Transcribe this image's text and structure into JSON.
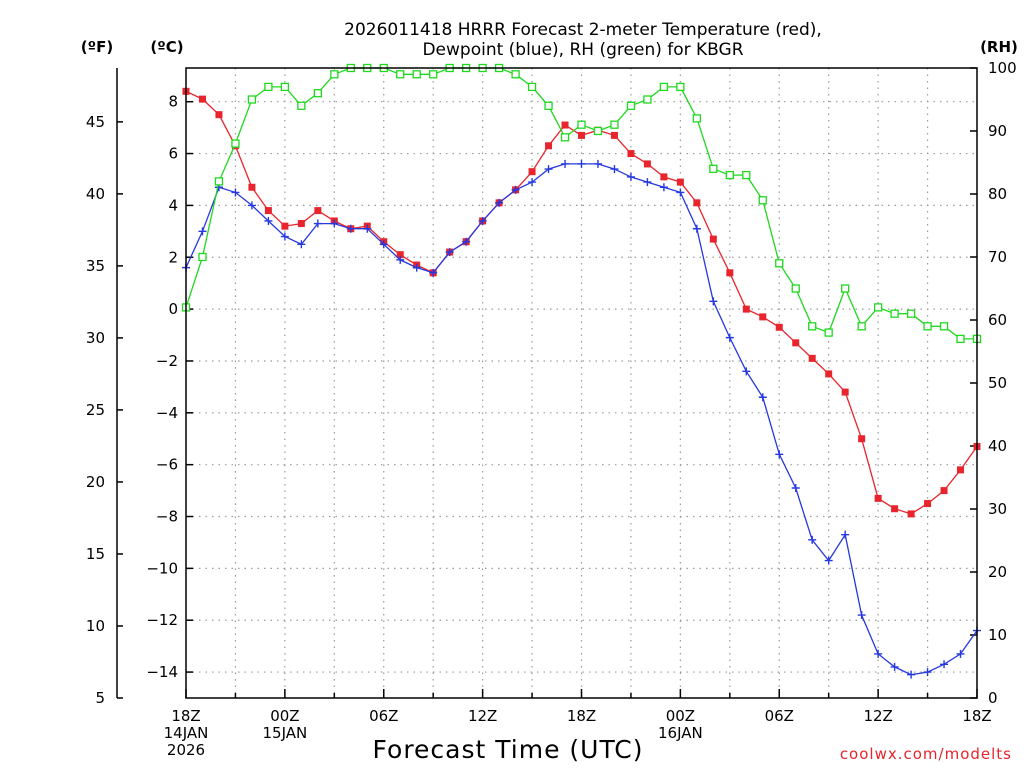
{
  "chart_data": {
    "type": "line",
    "title_line1": "2026011418 HRRR Forecast 2-meter Temperature (red),",
    "title_line2": "Dewpoint (blue), RH (green) for KBGR",
    "xlabel": "Forecast Time (UTC)",
    "credit": "coolwx.com/modelts",
    "left_outer_unit": "(ºF)",
    "left_inner_unit": "(ºC)",
    "right_unit": "(RH)",
    "x_range_hours": [
      0,
      48
    ],
    "celsius_range": [
      -15,
      9.3
    ],
    "fahrenheit_ticks": [
      "5",
      "10",
      "15",
      "20",
      "25",
      "30",
      "35",
      "40",
      "45"
    ],
    "fahrenheit_tick_values": [
      5,
      10,
      15,
      20,
      25,
      30,
      35,
      40,
      45
    ],
    "celsius_ticks": [
      "−14",
      "−12",
      "−10",
      "−8",
      "−6",
      "−4",
      "−2",
      "0",
      "2",
      "4",
      "6",
      "8"
    ],
    "celsius_tick_values": [
      -14,
      -12,
      -10,
      -8,
      -6,
      -4,
      -2,
      0,
      2,
      4,
      6,
      8
    ],
    "rh_ticks": [
      "0",
      "10",
      "20",
      "30",
      "40",
      "50",
      "60",
      "70",
      "80",
      "90",
      "100"
    ],
    "rh_tick_values": [
      0,
      10,
      20,
      30,
      40,
      50,
      60,
      70,
      80,
      90,
      100
    ],
    "x_ticks": [
      {
        "hour": 0,
        "lines": [
          "18Z",
          "14JAN",
          "2026"
        ]
      },
      {
        "hour": 6,
        "lines": [
          "00Z",
          "15JAN"
        ]
      },
      {
        "hour": 12,
        "lines": [
          "06Z"
        ]
      },
      {
        "hour": 18,
        "lines": [
          "12Z"
        ]
      },
      {
        "hour": 24,
        "lines": [
          "18Z"
        ]
      },
      {
        "hour": 30,
        "lines": [
          "00Z",
          "16JAN"
        ]
      },
      {
        "hour": 36,
        "lines": [
          "06Z"
        ]
      },
      {
        "hour": 42,
        "lines": [
          "12Z"
        ]
      },
      {
        "hour": 48,
        "lines": [
          "18Z"
        ]
      }
    ],
    "x_hours": [
      0,
      1,
      2,
      3,
      4,
      5,
      6,
      7,
      8,
      9,
      10,
      11,
      12,
      13,
      14,
      15,
      16,
      17,
      18,
      19,
      20,
      21,
      22,
      23,
      24,
      25,
      26,
      27,
      28,
      29,
      30,
      31,
      32,
      33,
      34,
      35,
      36,
      37,
      38,
      39,
      40,
      41,
      42,
      43,
      44,
      45,
      46,
      47,
      48
    ],
    "series": [
      {
        "name": "Temperature",
        "color": "#e8242c",
        "marker": "filled-square",
        "axis": "celsius",
        "values": [
          8.4,
          8.1,
          7.5,
          6.3,
          4.7,
          3.8,
          3.2,
          3.3,
          3.8,
          3.4,
          3.1,
          3.2,
          2.6,
          2.1,
          1.7,
          1.4,
          2.2,
          2.6,
          3.4,
          4.1,
          4.6,
          5.3,
          6.3,
          7.1,
          6.7,
          6.9,
          6.7,
          6.0,
          5.6,
          5.1,
          4.9,
          4.1,
          2.7,
          1.4,
          0.0,
          -0.3,
          -0.7,
          -1.3,
          -1.9,
          -2.5,
          -3.2,
          -5.0,
          -7.3,
          -7.7,
          -7.9,
          -7.5,
          -7.0,
          -6.2,
          -5.3
        ]
      },
      {
        "name": "Dewpoint",
        "color": "#2638e0",
        "marker": "plus",
        "axis": "celsius",
        "values": [
          1.6,
          3.0,
          4.7,
          4.5,
          4.0,
          3.4,
          2.8,
          2.5,
          3.3,
          3.3,
          3.1,
          3.1,
          2.5,
          1.9,
          1.6,
          1.4,
          2.2,
          2.6,
          3.4,
          4.1,
          4.6,
          4.9,
          5.4,
          5.6,
          5.6,
          5.6,
          5.4,
          5.1,
          4.9,
          4.7,
          4.5,
          3.1,
          0.3,
          -1.1,
          -2.4,
          -3.4,
          -5.6,
          -6.9,
          -8.9,
          -9.7,
          -8.7,
          -11.8,
          -13.3,
          -13.8,
          -14.1,
          -14.0,
          -13.7,
          -13.3,
          -12.4
        ]
      },
      {
        "name": "RH",
        "color": "#1fd81f",
        "marker": "open-square",
        "axis": "rh",
        "values": [
          62,
          70,
          82,
          88,
          95,
          97,
          97,
          94,
          96,
          99,
          100,
          100,
          100,
          99,
          99,
          99,
          100,
          100,
          100,
          100,
          99,
          97,
          94,
          89,
          91,
          90,
          91,
          94,
          95,
          97,
          97,
          92,
          84,
          83,
          83,
          79,
          69,
          65,
          59,
          58,
          65,
          59,
          62,
          61,
          61,
          59,
          59,
          57,
          57
        ]
      }
    ]
  }
}
